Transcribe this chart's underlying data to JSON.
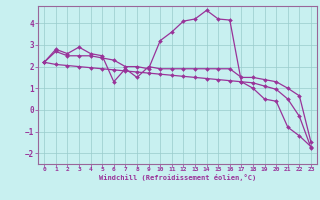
{
  "xlabel": "Windchill (Refroidissement éolien,°C)",
  "background_color": "#c8f0f0",
  "line_color": "#993399",
  "grid_color": "#99cccc",
  "xlim": [
    -0.5,
    23.5
  ],
  "ylim": [
    -2.5,
    4.8
  ],
  "xticks": [
    0,
    1,
    2,
    3,
    4,
    5,
    6,
    7,
    8,
    9,
    10,
    11,
    12,
    13,
    14,
    15,
    16,
    17,
    18,
    19,
    20,
    21,
    22,
    23
  ],
  "yticks": [
    -2,
    -1,
    0,
    1,
    2,
    3,
    4
  ],
  "series1_x": [
    0,
    1,
    2,
    3,
    4,
    5,
    6,
    7,
    8,
    9,
    10,
    11,
    12,
    13,
    14,
    15,
    16,
    17,
    18,
    19,
    20,
    21,
    22,
    23
  ],
  "series1_y": [
    2.2,
    2.8,
    2.6,
    2.9,
    2.6,
    2.5,
    1.3,
    1.9,
    1.5,
    2.0,
    1.9,
    1.9,
    1.9,
    1.9,
    1.9,
    1.9,
    1.9,
    1.5,
    1.5,
    1.4,
    1.3,
    1.0,
    0.65,
    -1.5
  ],
  "series2_x": [
    0,
    1,
    2,
    3,
    4,
    5,
    6,
    7,
    8,
    9,
    10,
    11,
    12,
    13,
    14,
    15,
    16,
    17,
    18,
    19,
    20,
    21,
    22,
    23
  ],
  "series2_y": [
    2.2,
    2.7,
    2.5,
    2.5,
    2.5,
    2.4,
    2.3,
    2.0,
    2.0,
    1.9,
    3.2,
    3.6,
    4.1,
    4.2,
    4.6,
    4.2,
    4.15,
    1.3,
    1.0,
    0.5,
    0.4,
    -0.8,
    -1.2,
    -1.7
  ],
  "series3_x": [
    0,
    1,
    2,
    3,
    4,
    5,
    6,
    7,
    8,
    9,
    10,
    11,
    12,
    13,
    14,
    15,
    16,
    17,
    18,
    19,
    20,
    21,
    22,
    23
  ],
  "series3_y": [
    2.2,
    2.1,
    2.05,
    2.0,
    1.95,
    1.9,
    1.85,
    1.8,
    1.75,
    1.7,
    1.65,
    1.6,
    1.55,
    1.5,
    1.45,
    1.4,
    1.35,
    1.3,
    1.25,
    1.1,
    0.95,
    0.5,
    -0.3,
    -1.75
  ]
}
